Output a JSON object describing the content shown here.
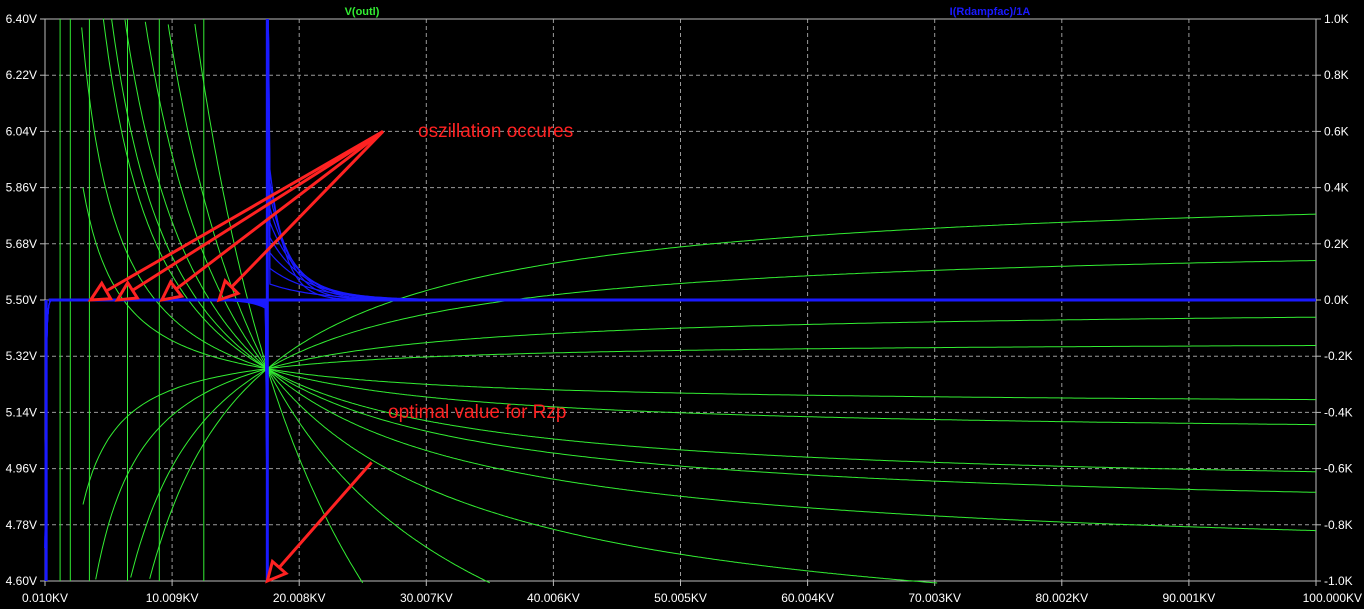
{
  "chart_data": {
    "type": "line",
    "x_axis": {
      "range": [
        0.01,
        100
      ],
      "unit": "KV",
      "ticks": [
        0.01,
        10.009,
        20.008,
        30.007,
        40.006,
        50.005,
        60.004,
        70.003,
        80.002,
        90.001,
        100.0
      ],
      "tick_labels": [
        "0.010KV",
        "10.009KV",
        "20.008KV",
        "30.007KV",
        "40.006KV",
        "50.005KV",
        "60.004KV",
        "70.003KV",
        "80.002KV",
        "90.001KV",
        "100.000KV"
      ]
    },
    "y_left": {
      "range": [
        4.6,
        6.4
      ],
      "ticks": [
        4.6,
        4.78,
        4.96,
        5.14,
        5.32,
        5.5,
        5.68,
        5.86,
        6.04,
        6.22,
        6.4
      ],
      "tick_labels": [
        "4.60V",
        "4.78V",
        "4.96V",
        "5.14V",
        "5.32V",
        "5.50V",
        "5.68V",
        "5.86V",
        "6.04V",
        "6.22V",
        "6.40V"
      ]
    },
    "y_right": {
      "range": [
        -1.0,
        1.0
      ],
      "ticks": [
        -1.0,
        -0.8,
        -0.6,
        -0.4,
        -0.2,
        0.0,
        0.2,
        0.4,
        0.6,
        0.8,
        1.0
      ],
      "tick_labels": [
        "-1.0K",
        "-0.8K",
        "-0.6K",
        "-0.4K",
        "-0.2K",
        "0.0K",
        "0.2K",
        "0.4K",
        "0.6K",
        "0.8K",
        "1.0K"
      ]
    },
    "grid": true,
    "series": [
      {
        "name": "V(outl)",
        "axis": "left",
        "color": "#33ee33",
        "pivot": [
          17.5,
          5.28
        ],
        "traces": [
          {
            "kind": "vertical",
            "x": 1.2
          },
          {
            "kind": "vertical",
            "x": 2.0
          },
          {
            "kind": "vertical",
            "x": 3.5
          },
          {
            "kind": "vertical",
            "x": 6.5
          },
          {
            "kind": "vertical",
            "x": 9.0
          },
          {
            "kind": "vertical",
            "x": 12.5
          },
          {
            "kind": "hyperbola",
            "k": 3.8
          },
          {
            "kind": "hyperbola",
            "k": 7.0
          },
          {
            "kind": "hyperbola",
            "k": 11.0
          },
          {
            "kind": "hyperbola",
            "k": 16.0
          },
          {
            "kind": "hyperbola",
            "k": 24.0
          },
          {
            "kind": "hyperbola",
            "k": 40.0
          },
          {
            "kind": "saturating",
            "end": 5.48
          },
          {
            "kind": "saturating",
            "end": 5.37
          },
          {
            "kind": "saturating",
            "end": 5.16
          },
          {
            "kind": "saturating",
            "end": 4.8
          },
          {
            "kind": "saturating",
            "end": 5.7
          },
          {
            "kind": "saturating",
            "end": 5.88
          }
        ]
      },
      {
        "name": "I(Rdampfac)/1A",
        "axis": "right",
        "color": "#1a1aff",
        "step_x": 17.5,
        "settle": 0.0,
        "peak_amplitudes": [
          0.55,
          0.48,
          0.42,
          0.36,
          0.3,
          0.24,
          0.18,
          0.12,
          0.06
        ]
      }
    ],
    "annotations": [
      {
        "text": "oszillation occures",
        "color": "#ff2222",
        "anchor": [
          26.6,
          6.04
        ],
        "targets": [
          [
            3.6,
            5.5
          ],
          [
            5.7,
            5.5
          ],
          [
            9.2,
            5.5
          ],
          [
            13.7,
            5.5
          ]
        ]
      },
      {
        "text": "optimal value for Rzp",
        "color": "#ff2222",
        "anchor": [
          25.7,
          4.98
        ],
        "targets": [
          [
            17.5,
            4.6
          ]
        ]
      }
    ]
  }
}
